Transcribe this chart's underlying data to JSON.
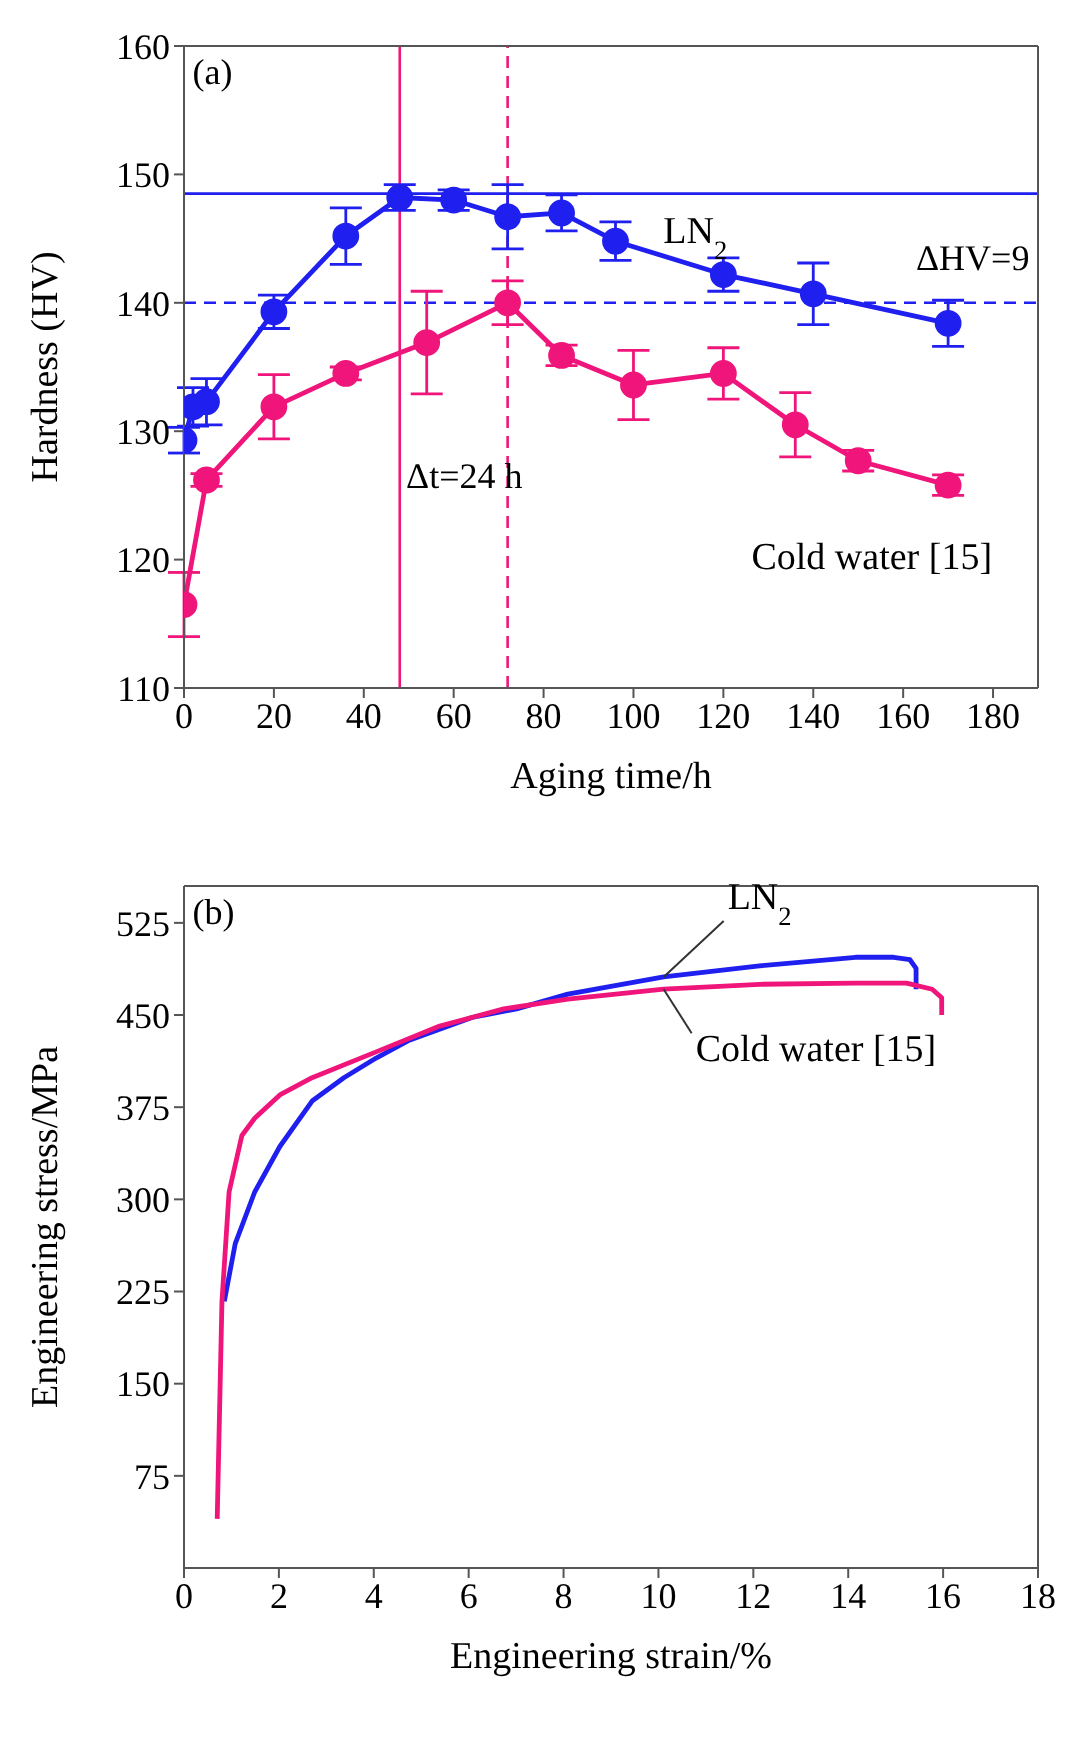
{
  "chart_data": [
    {
      "type": "line",
      "xlabel": "Aging time/h",
      "ylabel": "Hardness (HV)",
      "xlim": [
        0,
        190
      ],
      "xticks": [
        0,
        20,
        40,
        60,
        80,
        100,
        120,
        140,
        160,
        180
      ],
      "ylim": [
        110,
        160
      ],
      "yticks": [
        110,
        120,
        130,
        140,
        150,
        160
      ],
      "marker": "circle",
      "line_style": "solid",
      "series": [
        {
          "name": "LN$_{2}$",
          "color": "#1f1fef",
          "x": [
            0,
            2,
            5,
            20,
            36,
            48,
            60,
            72,
            84,
            96,
            120,
            140,
            170
          ],
          "values": [
            129.3,
            131.9,
            132.3,
            139.3,
            145.2,
            148.2,
            148.0,
            146.7,
            147.0,
            144.8,
            142.2,
            140.7,
            138.4
          ],
          "errors": [
            1,
            1.5,
            1.8,
            1.3,
            2.2,
            1,
            0.8,
            2.5,
            1.4,
            1.5,
            1.3,
            2.4,
            1.8
          ]
        },
        {
          "name": "Cold water [15]",
          "color": "#f0157a",
          "x": [
            0,
            5,
            20,
            36,
            54,
            72,
            84,
            100,
            120,
            136,
            150,
            170
          ],
          "values": [
            116.5,
            126.2,
            131.9,
            134.5,
            136.9,
            140.0,
            135.9,
            133.6,
            134.5,
            130.5,
            127.7,
            125.8
          ],
          "errors": [
            2.5,
            0.5,
            2.5,
            0.5,
            4,
            1.7,
            0.8,
            2.7,
            2,
            2.5,
            0.8,
            0.8
          ]
        }
      ],
      "ref_lines": [
        {
          "axis": "y",
          "value": 148.5,
          "color": "#1f1fef",
          "line_style": "solid"
        },
        {
          "axis": "y",
          "value": 140,
          "color": "#1f1fef",
          "line_style": "dashed"
        },
        {
          "axis": "x",
          "value": 48,
          "color": "#f0157a",
          "line_style": "solid"
        },
        {
          "axis": "x",
          "value": 72,
          "color": "#f0157a",
          "line_style": "dashed"
        }
      ],
      "annotations": [
        "(a)",
        "Δt=24 h",
        "ΔHV=9"
      ]
    },
    {
      "type": "line",
      "xlabel": "Engineering strain/%",
      "ylabel": "Engineering stress/MPa",
      "xlim": [
        0,
        18
      ],
      "xticks": [
        0,
        2,
        4,
        6,
        8,
        10,
        12,
        14,
        16,
        18
      ],
      "ylim": [
        0,
        555
      ],
      "yticks": [
        75,
        150,
        225,
        300,
        375,
        450,
        525
      ],
      "marker": "none",
      "line_style": "solid",
      "series": [
        {
          "name": "LN$_{2}$",
          "color": "#1f1fef",
          "x": [
            0.85,
            1.08,
            1.49,
            2.02,
            2.7,
            3.37,
            4.05,
            4.72,
            6.07,
            7.01,
            8.09,
            10.11,
            12.13,
            14.15,
            14.96,
            15.3,
            15.43,
            15.43
          ],
          "values": [
            217,
            264,
            306,
            343,
            380,
            399,
            415,
            429,
            448,
            455,
            467,
            481,
            490,
            497,
            497,
            495,
            488,
            471
          ]
        },
        {
          "name": "Cold water [15]",
          "color": "#f0157a",
          "x": [
            0.7,
            0.8,
            0.95,
            1.22,
            1.49,
            2.02,
            2.7,
            4.05,
            5.39,
            6.74,
            8.09,
            10.11,
            12.13,
            14.15,
            15.23,
            15.77,
            15.97,
            15.97
          ],
          "values": [
            40,
            217,
            306,
            352,
            366,
            385,
            399,
            420,
            441,
            455,
            463,
            471,
            475,
            476,
            476,
            471,
            464,
            450
          ]
        }
      ],
      "annotations": [
        "(b)"
      ]
    }
  ]
}
